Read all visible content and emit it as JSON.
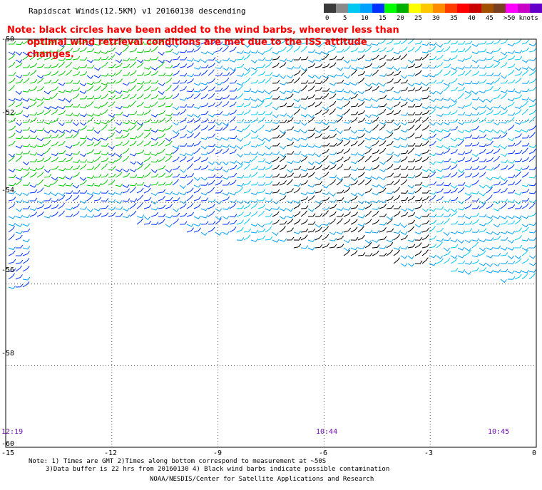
{
  "title": "Rapidscat Winds(12.5KM) v1 20160130 descending",
  "note": {
    "line1": "Note: black circles have been added to the wind barbs, wherever less than",
    "line2": "optimal wind retrieval conditions are met due to the ISS attitude changes."
  },
  "legend": {
    "unit": "knots",
    "labels": [
      "0",
      "5",
      "10",
      "15",
      "20",
      "25",
      "30",
      "35",
      "40",
      "45",
      ">50 knots"
    ],
    "colors": [
      "#3a3a3a",
      "#8a8a8a",
      "#00c8f0",
      "#00a0ff",
      "#0032ff",
      "#00ff00",
      "#00b000",
      "#ffff00",
      "#ffc800",
      "#ff8c00",
      "#ff3c00",
      "#ff0000",
      "#c80000",
      "#a05000",
      "#784020",
      "#ff00ff",
      "#c800c8",
      "#6400c8",
      "#3c006e"
    ]
  },
  "axes": {
    "x_ticks": [
      "-15",
      "-12",
      "-9",
      "-6",
      "-3",
      "0"
    ],
    "y_ticks": [
      "-50",
      "-52",
      "-54",
      "-56",
      "-58",
      "-60"
    ]
  },
  "times": [
    "12:19",
    "10:44",
    "10:45"
  ],
  "footnotes": {
    "line1": "Note: 1) Times are GMT 2)Times along bottom correspond to measurement at ~50S",
    "line2": "3)Data buffer is 22 hrs from 20160130 4) Black wind barbs indicate possible contamination",
    "line3": "NOAA/NESDIS/Center for Satellite Applications and Research"
  },
  "map": {
    "lon_range": [
      -15,
      0
    ],
    "lat_range": [
      -60,
      -50
    ],
    "grid": true
  }
}
